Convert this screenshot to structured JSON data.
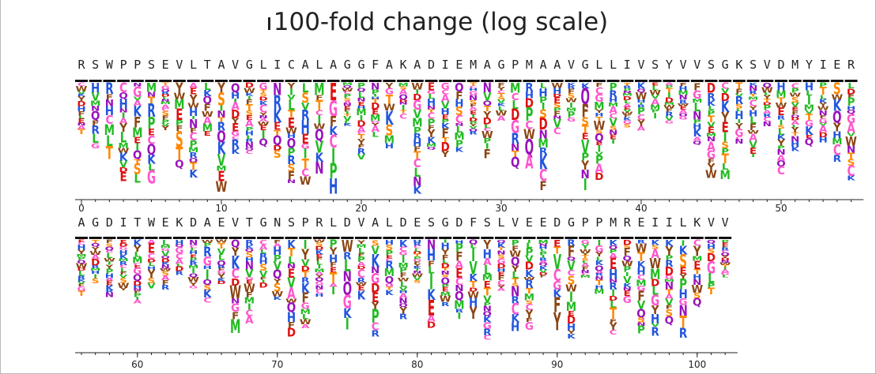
{
  "title": "100-fold change (log scale)",
  "chart_data": {
    "type": "sequence-logo",
    "title": "100-fold change (log scale)",
    "wildtype_sequence": "RSWPPSEVLTAVGLICALAGGFAKADIEMAGPMAAVGLLIVSYVVSGKSVDMYIERAGDITWEKDAEVTGNSPRLDVALDESGDFSLVEEDGPPMREIILKVV",
    "rows": [
      {
        "start": 0,
        "end": 55,
        "tick_labels": [
          0,
          10,
          20,
          30,
          40,
          50
        ]
      },
      {
        "start": 56,
        "end": 102,
        "tick_labels": [
          60,
          70,
          80,
          90,
          100
        ]
      }
    ],
    "amino_acids": [
      "A",
      "C",
      "D",
      "E",
      "F",
      "G",
      "H",
      "I",
      "K",
      "L",
      "M",
      "N",
      "P",
      "Q",
      "R",
      "S",
      "T",
      "V",
      "W",
      "Y"
    ],
    "letter_colors": {
      "R": "#2255dd",
      "K": "#2255dd",
      "H": "#2255dd",
      "D": "#dd1111",
      "E": "#dd1111",
      "S": "#ff8800",
      "T": "#ff8800",
      "N": "#9911bb",
      "Q": "#9911bb",
      "A": "#ff55cc",
      "C": "#ff55cc",
      "G": "#ff55cc",
      "P": "#22bb22",
      "L": "#22bb22",
      "I": "#22bb22",
      "M": "#22bb22",
      "V": "#22bb22",
      "F": "#8b4513",
      "W": "#8b4513",
      "Y": "#8b4513"
    }
  }
}
